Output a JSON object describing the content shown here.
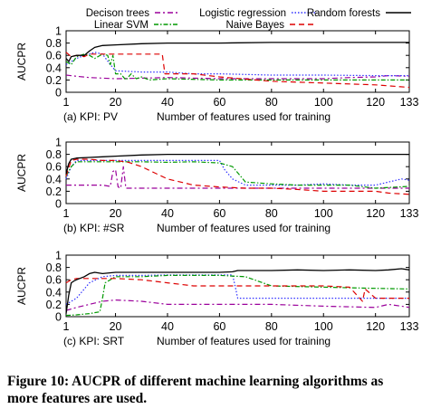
{
  "legend": {
    "row1": [
      {
        "label": "Decison trees",
        "key": "dt"
      },
      {
        "label": "Logistic regression",
        "key": "lr"
      },
      {
        "label": "Random forests",
        "key": "rf"
      }
    ],
    "row2": [
      {
        "label": "Linear SVM",
        "key": "svm"
      },
      {
        "label": "Naive Bayes",
        "key": "nb"
      }
    ]
  },
  "styles": {
    "rf": {
      "color": "#000000",
      "dash": ""
    },
    "dt": {
      "color": "#9b009b",
      "dash": "6 3 2 3"
    },
    "lr": {
      "color": "#3030ff",
      "dash": "1.5 2"
    },
    "svm": {
      "color": "#009900",
      "dash": "5 2 1.5 2"
    },
    "nb": {
      "color": "#dd0000",
      "dash": "6 4"
    }
  },
  "chart_data": [
    {
      "type": "line",
      "caption": "(a) KPI: PV",
      "xlabel": "Number of features used for training",
      "ylabel": "AUCPR",
      "xlim": [
        1,
        133
      ],
      "ylim": [
        0,
        1
      ],
      "xticks": [
        1,
        20,
        40,
        60,
        80,
        100,
        120,
        133
      ],
      "yticks": [
        0,
        0.2,
        0.4,
        0.6,
        0.8,
        1
      ],
      "series": [
        {
          "key": "rf",
          "x": [
            1,
            2,
            3,
            5,
            8,
            10,
            12,
            15,
            20,
            30,
            40,
            60,
            80,
            100,
            120,
            133
          ],
          "y": [
            0.55,
            0.5,
            0.58,
            0.6,
            0.6,
            0.67,
            0.73,
            0.76,
            0.77,
            0.79,
            0.8,
            0.8,
            0.81,
            0.81,
            0.81,
            0.81
          ]
        },
        {
          "key": "dt",
          "x": [
            1,
            5,
            10,
            20,
            30,
            40,
            60,
            80,
            100,
            110,
            120,
            125,
            133
          ],
          "y": [
            0.28,
            0.26,
            0.24,
            0.22,
            0.23,
            0.24,
            0.22,
            0.22,
            0.22,
            0.24,
            0.25,
            0.27,
            0.26
          ]
        },
        {
          "key": "lr",
          "x": [
            1,
            3,
            5,
            8,
            10,
            12,
            15,
            18,
            20,
            30,
            40,
            50,
            60,
            80,
            100,
            120,
            133
          ],
          "y": [
            0.45,
            0.5,
            0.55,
            0.6,
            0.62,
            0.65,
            0.62,
            0.45,
            0.35,
            0.33,
            0.33,
            0.3,
            0.3,
            0.28,
            0.28,
            0.27,
            0.27
          ]
        },
        {
          "key": "svm",
          "x": [
            1,
            3,
            5,
            8,
            10,
            12,
            15,
            17,
            18,
            19,
            20,
            22,
            24,
            26,
            28,
            30,
            33,
            40,
            60,
            80,
            100,
            120,
            133
          ],
          "y": [
            0.5,
            0.45,
            0.58,
            0.62,
            0.6,
            0.55,
            0.62,
            0.6,
            0.45,
            0.6,
            0.3,
            0.3,
            0.2,
            0.3,
            0.22,
            0.25,
            0.2,
            0.22,
            0.2,
            0.2,
            0.2,
            0.2,
            0.2
          ]
        },
        {
          "key": "nb",
          "x": [
            1,
            3,
            5,
            8,
            10,
            12,
            15,
            20,
            30,
            38,
            39,
            40,
            50,
            60,
            80,
            100,
            120,
            133
          ],
          "y": [
            0.65,
            0.58,
            0.6,
            0.58,
            0.62,
            0.62,
            0.62,
            0.62,
            0.62,
            0.62,
            0.3,
            0.3,
            0.3,
            0.25,
            0.18,
            0.15,
            0.12,
            0.08
          ]
        }
      ]
    },
    {
      "type": "line",
      "caption": "(b) KPI: #SR",
      "xlabel": "Number of features used for training",
      "ylabel": "AUCPR",
      "xlim": [
        1,
        133
      ],
      "ylim": [
        0,
        1
      ],
      "xticks": [
        1,
        20,
        40,
        60,
        80,
        100,
        120,
        133
      ],
      "yticks": [
        0,
        0.2,
        0.4,
        0.6,
        0.8,
        1
      ],
      "series": [
        {
          "key": "rf",
          "x": [
            1,
            2,
            3,
            5,
            10,
            15,
            20,
            30,
            40,
            60,
            80,
            100,
            120,
            133
          ],
          "y": [
            0.48,
            0.65,
            0.72,
            0.74,
            0.75,
            0.76,
            0.77,
            0.79,
            0.8,
            0.8,
            0.8,
            0.8,
            0.8,
            0.8
          ]
        },
        {
          "key": "dt",
          "x": [
            1,
            5,
            10,
            15,
            18,
            19,
            20,
            21,
            22,
            23,
            24,
            25,
            26,
            30,
            40,
            60,
            80,
            100,
            120,
            133
          ],
          "y": [
            0.3,
            0.3,
            0.3,
            0.3,
            0.28,
            0.52,
            0.55,
            0.27,
            0.25,
            0.6,
            0.25,
            0.25,
            0.25,
            0.25,
            0.25,
            0.25,
            0.25,
            0.25,
            0.25,
            0.25
          ]
        },
        {
          "key": "lr",
          "x": [
            1,
            3,
            5,
            10,
            20,
            40,
            50,
            55,
            60,
            62,
            65,
            70,
            80,
            90,
            100,
            110,
            120,
            125,
            130,
            133
          ],
          "y": [
            0.4,
            0.6,
            0.7,
            0.7,
            0.7,
            0.7,
            0.7,
            0.7,
            0.7,
            0.55,
            0.4,
            0.3,
            0.3,
            0.3,
            0.32,
            0.3,
            0.3,
            0.35,
            0.4,
            0.38
          ]
        },
        {
          "key": "svm",
          "x": [
            1,
            3,
            5,
            10,
            20,
            30,
            40,
            50,
            60,
            65,
            70,
            80,
            90,
            100,
            110,
            120,
            133
          ],
          "y": [
            0.45,
            0.6,
            0.68,
            0.68,
            0.68,
            0.68,
            0.67,
            0.68,
            0.66,
            0.6,
            0.35,
            0.32,
            0.3,
            0.3,
            0.3,
            0.25,
            0.28
          ]
        },
        {
          "key": "nb",
          "x": [
            1,
            3,
            5,
            10,
            15,
            20,
            25,
            30,
            35,
            40,
            50,
            60,
            70,
            80,
            90,
            100,
            110,
            120,
            125,
            133
          ],
          "y": [
            0.45,
            0.7,
            0.72,
            0.72,
            0.7,
            0.7,
            0.67,
            0.6,
            0.5,
            0.4,
            0.3,
            0.27,
            0.25,
            0.25,
            0.23,
            0.2,
            0.2,
            0.2,
            0.17,
            0.15
          ]
        }
      ]
    },
    {
      "type": "line",
      "caption": "(c) KPI: SRT",
      "xlabel": "Number of features used for training",
      "ylabel": "AUCPR",
      "xlim": [
        1,
        133
      ],
      "ylim": [
        0,
        1
      ],
      "xticks": [
        1,
        20,
        40,
        60,
        80,
        100,
        120,
        133
      ],
      "yticks": [
        0,
        0.2,
        0.4,
        0.6,
        0.8,
        1
      ],
      "series": [
        {
          "key": "rf",
          "x": [
            1,
            2,
            3,
            4,
            5,
            8,
            10,
            12,
            15,
            20,
            30,
            40,
            60,
            65,
            67,
            70,
            80,
            90,
            100,
            110,
            120,
            125,
            130,
            133
          ],
          "y": [
            0.05,
            0.35,
            0.55,
            0.58,
            0.6,
            0.65,
            0.7,
            0.72,
            0.7,
            0.72,
            0.72,
            0.72,
            0.72,
            0.73,
            0.75,
            0.75,
            0.75,
            0.76,
            0.75,
            0.76,
            0.75,
            0.76,
            0.78,
            0.76
          ]
        },
        {
          "key": "dt",
          "x": [
            1,
            5,
            10,
            15,
            20,
            30,
            40,
            60,
            80,
            100,
            120,
            125,
            130,
            133
          ],
          "y": [
            0.1,
            0.15,
            0.2,
            0.25,
            0.27,
            0.25,
            0.2,
            0.2,
            0.2,
            0.17,
            0.15,
            0.2,
            0.17,
            0.15
          ]
        },
        {
          "key": "lr",
          "x": [
            1,
            5,
            10,
            15,
            20,
            30,
            40,
            60,
            65,
            66,
            67,
            70,
            80,
            100,
            120,
            133
          ],
          "y": [
            0.2,
            0.3,
            0.55,
            0.65,
            0.67,
            0.67,
            0.68,
            0.68,
            0.68,
            0.5,
            0.3,
            0.3,
            0.3,
            0.3,
            0.3,
            0.3
          ]
        },
        {
          "key": "svm",
          "x": [
            1,
            5,
            10,
            14,
            15,
            16,
            20,
            30,
            40,
            60,
            70,
            80,
            100,
            120,
            133
          ],
          "y": [
            0.02,
            0.03,
            0.05,
            0.08,
            0.3,
            0.55,
            0.65,
            0.65,
            0.67,
            0.67,
            0.65,
            0.5,
            0.48,
            0.46,
            0.45
          ]
        },
        {
          "key": "nb",
          "x": [
            1,
            3,
            5,
            10,
            20,
            30,
            40,
            50,
            60,
            80,
            100,
            110,
            115,
            116,
            120,
            133
          ],
          "y": [
            0.55,
            0.6,
            0.62,
            0.62,
            0.62,
            0.6,
            0.55,
            0.5,
            0.5,
            0.5,
            0.5,
            0.48,
            0.25,
            0.45,
            0.3,
            0.3
          ]
        }
      ]
    }
  ],
  "figure_caption": "Figure 10: AUCPR of different machine learning algorithms as\nmore features are used."
}
